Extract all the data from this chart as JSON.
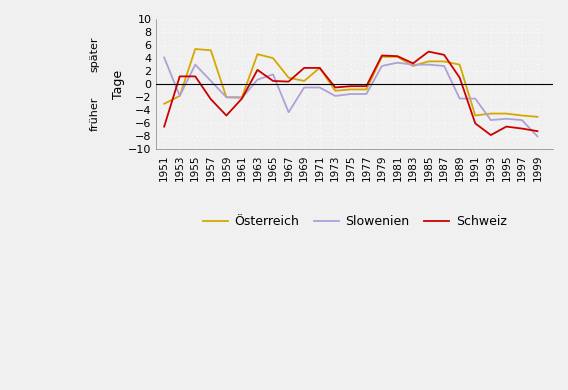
{
  "years": [
    1951,
    1953,
    1955,
    1957,
    1959,
    1961,
    1963,
    1965,
    1967,
    1969,
    1971,
    1973,
    1975,
    1977,
    1979,
    1981,
    1983,
    1985,
    1987,
    1989,
    1991,
    1993,
    1995,
    1997,
    1999
  ],
  "oesterreich": [
    -3.0,
    -1.8,
    5.4,
    5.2,
    -2.0,
    -2.0,
    4.6,
    4.0,
    1.0,
    0.5,
    2.5,
    -1.0,
    -0.8,
    -0.8,
    4.2,
    4.2,
    2.8,
    3.5,
    3.5,
    3.0,
    -4.8,
    -4.5,
    -4.5,
    -4.8,
    -5.0
  ],
  "slowenien": [
    4.1,
    -1.8,
    3.0,
    0.5,
    -2.0,
    -2.1,
    0.7,
    1.5,
    -4.3,
    -0.5,
    -0.5,
    -1.8,
    -1.5,
    -1.5,
    2.8,
    3.3,
    3.0,
    3.0,
    2.8,
    -2.2,
    -2.2,
    -5.5,
    -5.3,
    -5.5,
    -8.0
  ],
  "schweiz": [
    -6.5,
    1.2,
    1.2,
    -2.3,
    -4.8,
    -2.2,
    2.2,
    0.5,
    0.4,
    2.5,
    2.5,
    -0.5,
    -0.3,
    -0.3,
    4.4,
    4.3,
    3.2,
    5.0,
    4.5,
    1.0,
    -6.0,
    -7.8,
    -6.5,
    -6.8,
    -7.2
  ],
  "oesterreich_color": "#d4a800",
  "slowenien_color": "#b0a0d8",
  "schweiz_color": "#cc0000",
  "ylim": [
    -10,
    10
  ],
  "yticks": [
    -10,
    -8,
    -6,
    -4,
    -2,
    0,
    2,
    4,
    6,
    8,
    10
  ],
  "ylabel_later": "später",
  "ylabel_earlier": "früher",
  "ylabel_main": "Tage",
  "legend_labels": [
    "Österreich",
    "Slowenien",
    "Schweiz"
  ],
  "plot_bg_color": "#f0f0f0",
  "outer_bg_color": "#f0f0f0",
  "grid_color": "#ffffff",
  "zero_line_color": "#000000",
  "tick_label_color": "#000000",
  "border_color": "#808080"
}
